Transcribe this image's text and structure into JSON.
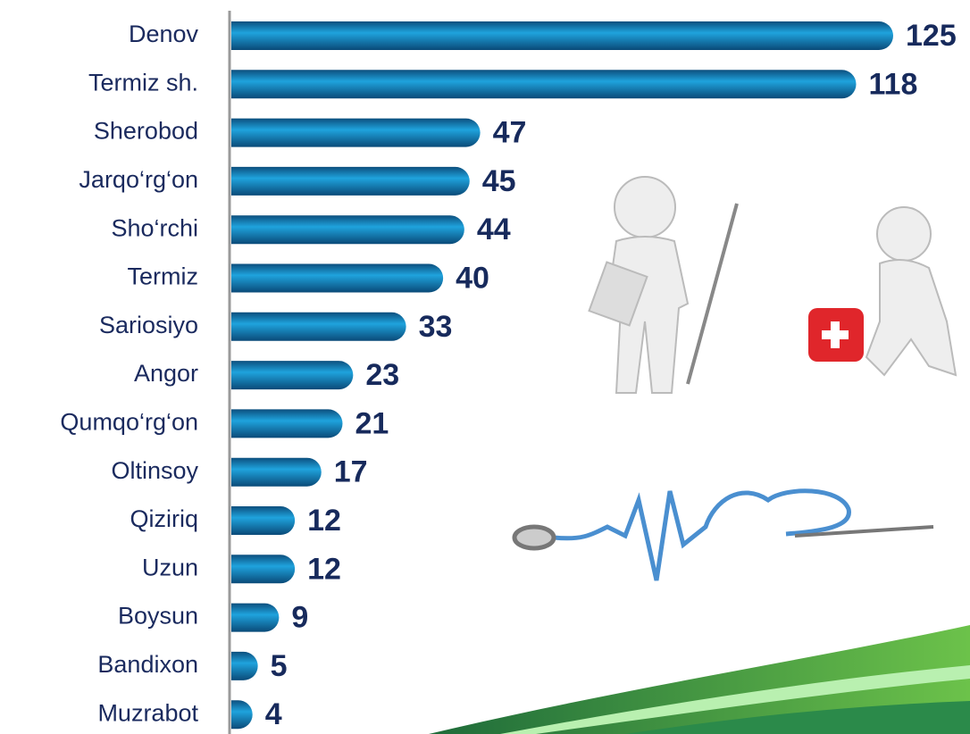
{
  "chart_data": {
    "type": "bar",
    "orientation": "horizontal",
    "categories": [
      "Denov",
      "Termiz sh.",
      "Sherobod",
      "Jarqo‘rg‘on",
      "Sho‘rchi",
      "Termiz",
      "Sariosiyo",
      "Angor",
      "Qumqo‘rg‘on",
      "Oltinsoy",
      "Qiziriq",
      "Uzun",
      "Boysun",
      "Bandixon",
      "Muzrabot"
    ],
    "values": [
      125,
      118,
      47,
      45,
      44,
      40,
      33,
      23,
      21,
      17,
      12,
      12,
      9,
      5,
      4
    ],
    "color": "#1fa3dd",
    "label_color": "#172a5c"
  }
}
